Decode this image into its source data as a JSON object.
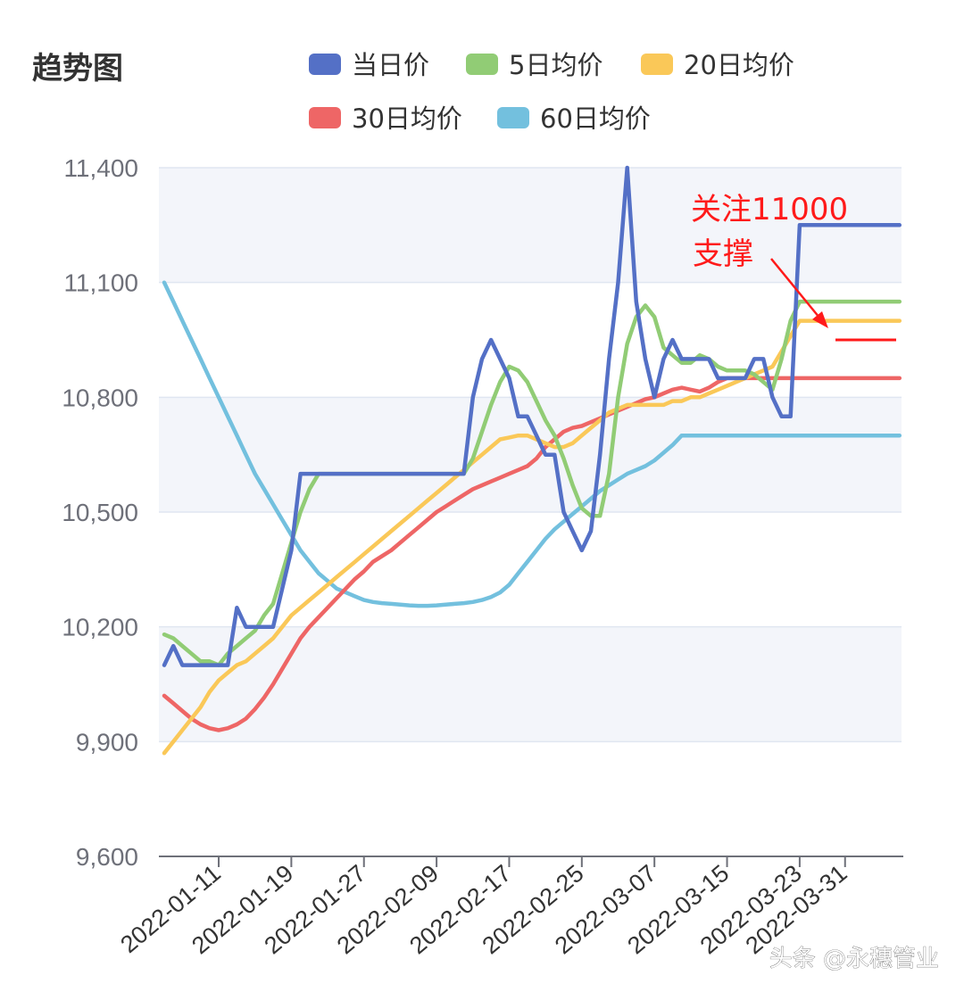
{
  "chart_data": {
    "type": "line",
    "title": "趋势图",
    "ylim": [
      9600,
      11400
    ],
    "yticks": [
      "11,400",
      "11,100",
      "10,800",
      "10,500",
      "10,200",
      "9,900",
      "9,600"
    ],
    "ytick_values": [
      11400,
      11100,
      10800,
      10500,
      10200,
      9900,
      9600
    ],
    "xtick_labels": [
      "2022-01-11",
      "2022-01-19",
      "2022-01-27",
      "2022-02-09",
      "2022-02-17",
      "2022-02-25",
      "2022-03-07",
      "2022-03-15",
      "2022-03-23",
      "2022-03-31"
    ],
    "xtick_index": [
      6,
      14,
      22,
      30,
      38,
      46,
      54,
      62,
      70,
      75
    ],
    "n_points": 82,
    "legend_position": "top",
    "grid": true,
    "series": [
      {
        "name": "当日价",
        "color": "#5470c6",
        "values": [
          10100,
          10150,
          10100,
          10100,
          10100,
          10100,
          10100,
          10100,
          10250,
          10200,
          10200,
          10200,
          10200,
          10300,
          10400,
          10600,
          10600,
          10600,
          10600,
          10600,
          10600,
          10600,
          10600,
          10600,
          10600,
          10600,
          10600,
          10600,
          10600,
          10600,
          10600,
          10600,
          10600,
          10600,
          10800,
          10900,
          10950,
          10900,
          10850,
          10750,
          10750,
          10700,
          10650,
          10650,
          10500,
          10450,
          10400,
          10450,
          10650,
          10900,
          11100,
          11400,
          11050,
          10900,
          10800,
          10900,
          10950,
          10900,
          10900,
          10900,
          10900,
          10850,
          10850,
          10850,
          10850,
          10900,
          10900,
          10800,
          10750,
          10750,
          11250,
          11250,
          11250,
          11250,
          11250,
          11250,
          11250,
          11250,
          11250,
          11250,
          11250,
          11250
        ]
      },
      {
        "name": "5日均价",
        "color": "#91cc75",
        "values": [
          10180,
          10170,
          10150,
          10130,
          10110,
          10110,
          10100,
          10130,
          10150,
          10170,
          10190,
          10230,
          10260,
          10340,
          10420,
          10500,
          10560,
          10600,
          10600,
          10600,
          10600,
          10600,
          10600,
          10600,
          10600,
          10600,
          10600,
          10600,
          10600,
          10600,
          10600,
          10600,
          10600,
          10600,
          10640,
          10710,
          10780,
          10840,
          10880,
          10870,
          10840,
          10790,
          10740,
          10700,
          10640,
          10570,
          10510,
          10490,
          10490,
          10600,
          10800,
          10940,
          11010,
          11040,
          11010,
          10930,
          10910,
          10890,
          10890,
          10910,
          10900,
          10880,
          10870,
          10870,
          10870,
          10860,
          10840,
          10820,
          10900,
          11000,
          11050,
          11050,
          11050,
          11050,
          11050,
          11050,
          11050,
          11050,
          11050,
          11050,
          11050,
          11050
        ]
      },
      {
        "name": "20日均价",
        "color": "#fac858",
        "values": [
          9870,
          9900,
          9930,
          9960,
          9990,
          10030,
          10060,
          10080,
          10100,
          10110,
          10130,
          10150,
          10170,
          10200,
          10230,
          10250,
          10270,
          10290,
          10310,
          10330,
          10350,
          10370,
          10390,
          10410,
          10430,
          10450,
          10470,
          10490,
          10510,
          10530,
          10550,
          10570,
          10590,
          10610,
          10630,
          10650,
          10670,
          10690,
          10695,
          10700,
          10700,
          10690,
          10680,
          10670,
          10670,
          10680,
          10700,
          10720,
          10740,
          10760,
          10770,
          10780,
          10780,
          10780,
          10780,
          10780,
          10790,
          10790,
          10800,
          10800,
          10810,
          10820,
          10830,
          10840,
          10850,
          10860,
          10870,
          10880,
          10920,
          10960,
          11000,
          11000,
          11000,
          11000,
          11000,
          11000,
          11000,
          11000,
          11000,
          11000,
          11000,
          11000
        ]
      },
      {
        "name": "30日均价",
        "color": "#ee6666",
        "values": [
          10020,
          10000,
          9980,
          9960,
          9945,
          9935,
          9930,
          9935,
          9945,
          9960,
          9985,
          10015,
          10050,
          10090,
          10130,
          10170,
          10200,
          10225,
          10250,
          10275,
          10300,
          10325,
          10345,
          10370,
          10385,
          10400,
          10420,
          10440,
          10460,
          10480,
          10500,
          10515,
          10530,
          10545,
          10560,
          10570,
          10580,
          10590,
          10600,
          10610,
          10620,
          10640,
          10670,
          10690,
          10710,
          10720,
          10725,
          10735,
          10745,
          10755,
          10765,
          10775,
          10785,
          10795,
          10800,
          10810,
          10820,
          10825,
          10820,
          10815,
          10825,
          10840,
          10850,
          10850,
          10850,
          10850,
          10850,
          10850,
          10850,
          10850,
          10850,
          10850,
          10850,
          10850,
          10850,
          10850,
          10850,
          10850,
          10850,
          10850,
          10850,
          10850
        ]
      },
      {
        "name": "60日均价",
        "color": "#73c0de",
        "values": [
          11100,
          11050,
          11000,
          10950,
          10900,
          10850,
          10800,
          10750,
          10700,
          10650,
          10600,
          10560,
          10520,
          10480,
          10440,
          10400,
          10370,
          10340,
          10320,
          10300,
          10290,
          10280,
          10270,
          10265,
          10262,
          10260,
          10258,
          10256,
          10255,
          10255,
          10256,
          10258,
          10260,
          10262,
          10265,
          10270,
          10278,
          10290,
          10310,
          10340,
          10370,
          10400,
          10430,
          10455,
          10475,
          10495,
          10515,
          10535,
          10555,
          10570,
          10585,
          10600,
          10610,
          10620,
          10635,
          10655,
          10675,
          10700,
          10700,
          10700,
          10700,
          10700,
          10700,
          10700,
          10700,
          10700,
          10700,
          10700,
          10700,
          10700,
          10700,
          10700,
          10700,
          10700,
          10700,
          10700,
          10700,
          10700,
          10700,
          10700,
          10700,
          10700
        ]
      }
    ],
    "annotations": [
      {
        "line1": "关注11000",
        "line2": "支撑",
        "color": "#ff1a1a",
        "value": 10950
      }
    ]
  },
  "watermark": "头条 @永穗管业"
}
